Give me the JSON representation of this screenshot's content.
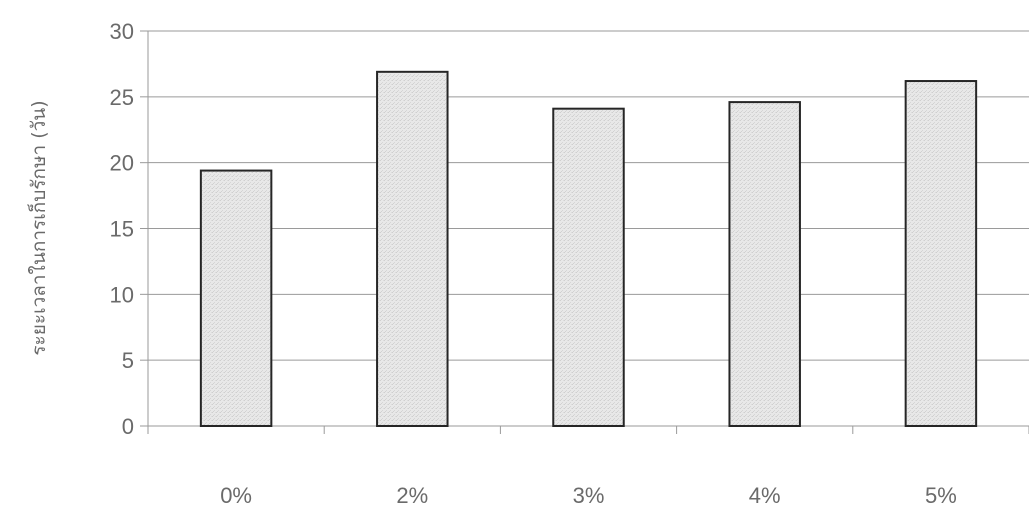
{
  "chart_data": {
    "type": "bar",
    "categories": [
      "0%",
      "2%",
      "3%",
      "4%",
      "5%"
    ],
    "values": [
      19.4,
      26.9,
      24.1,
      24.6,
      26.2
    ],
    "ylabel": "ระยะเวลาในการเก็บรักษา (วัน)",
    "xlabel": "",
    "ylim": [
      0,
      30
    ],
    "yticks": [
      0,
      5,
      10,
      15,
      20,
      25,
      30
    ],
    "grid": true,
    "colors": {
      "bar_fill": "#e6e6e6",
      "bar_stroke": "#262626",
      "grid": "#9a9a9a",
      "axis": "#9a9a9a",
      "text": "#6a6a6a"
    }
  }
}
